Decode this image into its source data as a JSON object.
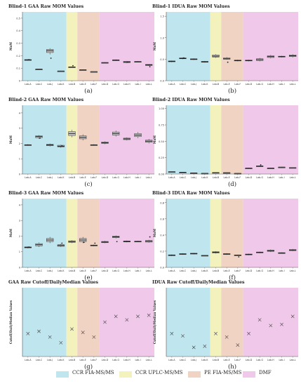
{
  "colors": {
    "ccr_fia": "#bfe6ee",
    "ccr_uplc": "#f3f2bc",
    "pe_fia": "#f1d3c3",
    "dmf": "#f0c9ea",
    "box_fill": "#c8c8c8",
    "box_edge": "#333333",
    "point": "#222222"
  },
  "legend": {
    "ccr_fia": "CCR FIA-MS/MS",
    "ccr_uplc": "CCR UPLC-MS/MS",
    "pe_fia": "PE FIA-MS/MS",
    "dmf": "DMF"
  },
  "chart_data": [
    {
      "title": "Blind-1 GAA Raw MOM Values",
      "panel_label": "(a)",
      "type": "box",
      "ylabel": "MoM",
      "ylim": [
        0,
        0.55
      ],
      "yticks": [
        "0",
        "0.1",
        "0.2",
        "0.3",
        "0.4",
        "0.5"
      ],
      "categories": [
        "Lab-A",
        "Lab-C",
        "Lab-J",
        "Lab-K",
        "Lab-B",
        "Lab-E",
        "Lab-F",
        "Lab-D",
        "Lab-G",
        "Lab-H",
        "Lab-I",
        "Lab-L"
      ],
      "groups": [
        "ccr_fia",
        "ccr_fia",
        "ccr_fia",
        "ccr_fia",
        "ccr_uplc",
        "pe_fia",
        "pe_fia",
        "dmf",
        "dmf",
        "dmf",
        "dmf",
        "dmf"
      ],
      "boxes": [
        [
          0.16,
          0.163,
          0.166,
          0.169,
          0.172
        ],
        [
          0.09,
          0.091,
          0.092,
          0.093,
          0.094
        ],
        [
          0.21,
          0.225,
          0.24,
          0.25,
          0.26
        ],
        [
          0.075,
          0.076,
          0.077,
          0.078,
          0.079
        ],
        [
          0.105,
          0.107,
          0.109,
          0.111,
          0.113
        ],
        [
          0.082,
          0.084,
          0.086,
          0.088,
          0.09
        ],
        [
          0.07,
          0.071,
          0.072,
          0.073,
          0.074
        ],
        [
          0.14,
          0.142,
          0.144,
          0.146,
          0.148
        ],
        [
          0.158,
          0.161,
          0.164,
          0.167,
          0.17
        ],
        [
          0.14,
          0.145,
          0.15,
          0.155,
          0.158
        ],
        [
          0.148,
          0.15,
          0.152,
          0.154,
          0.156
        ],
        [
          0.118,
          0.122,
          0.126,
          0.13,
          0.133
        ]
      ],
      "points": [
        [
          0.168
        ],
        [],
        [
          0.18
        ],
        [],
        [
          0.12
        ],
        [],
        [],
        [],
        [],
        [
          0.148
        ],
        [],
        [
          0.112
        ]
      ]
    },
    {
      "title": "Blind-1 IDUA Raw MOM Values",
      "panel_label": "(b)",
      "type": "box",
      "ylabel": "MoM",
      "ylim": [
        0,
        1.6
      ],
      "yticks": [
        "0.0",
        "0.5",
        "1.0",
        "1.5"
      ],
      "categories": [
        "Lab-A",
        "Lab-C",
        "Lab-J",
        "Lab-K",
        "Lab-B",
        "Lab-E",
        "Lab-F",
        "Lab-D",
        "Lab-G",
        "Lab-H",
        "Lab-I",
        "Lab-L"
      ],
      "groups": [
        "ccr_fia",
        "ccr_fia",
        "ccr_fia",
        "ccr_fia",
        "ccr_uplc",
        "pe_fia",
        "pe_fia",
        "dmf",
        "dmf",
        "dmf",
        "dmf",
        "dmf"
      ],
      "boxes": [
        [
          0.43,
          0.44,
          0.45,
          0.46,
          0.47
        ],
        [
          0.5,
          0.51,
          0.52,
          0.53,
          0.54
        ],
        [
          0.48,
          0.49,
          0.5,
          0.51,
          0.52
        ],
        [
          0.42,
          0.43,
          0.44,
          0.45,
          0.46
        ],
        [
          0.53,
          0.55,
          0.57,
          0.6,
          0.62
        ],
        [
          0.49,
          0.5,
          0.51,
          0.53,
          0.55
        ],
        [
          0.45,
          0.46,
          0.47,
          0.48,
          0.49
        ],
        [
          0.45,
          0.46,
          0.47,
          0.48,
          0.49
        ],
        [
          0.45,
          0.47,
          0.49,
          0.51,
          0.53
        ],
        [
          0.52,
          0.54,
          0.56,
          0.58,
          0.6
        ],
        [
          0.54,
          0.55,
          0.56,
          0.57,
          0.58
        ],
        [
          0.54,
          0.56,
          0.58,
          0.6,
          0.62
        ]
      ],
      "points": [
        [],
        [
          0.53
        ],
        [],
        [],
        [],
        [
          0.43
        ],
        [],
        [],
        [],
        [],
        [],
        []
      ]
    },
    {
      "title": "Blind-2 GAA Raw MOM Values",
      "panel_label": "(c)",
      "type": "box",
      "ylabel": "MoM",
      "ylim": [
        0,
        4.5
      ],
      "yticks": [
        "0",
        "1",
        "2",
        "3",
        "4"
      ],
      "categories": [
        "Lab-A",
        "Lab-C",
        "Lab-J",
        "Lab-K",
        "Lab-B",
        "Lab-E",
        "Lab-F",
        "Lab-D",
        "Lab-G",
        "Lab-H",
        "Lab-I",
        "Lab-L"
      ],
      "groups": [
        "ccr_fia",
        "ccr_fia",
        "ccr_fia",
        "ccr_fia",
        "ccr_uplc",
        "pe_fia",
        "pe_fia",
        "dmf",
        "dmf",
        "dmf",
        "dmf",
        "dmf"
      ],
      "boxes": [
        [
          1.85,
          1.88,
          1.9,
          1.92,
          1.95
        ],
        [
          2.3,
          2.38,
          2.45,
          2.5,
          2.55
        ],
        [
          1.8,
          1.85,
          1.9,
          1.95,
          2.0
        ],
        [
          1.72,
          1.78,
          1.82,
          1.88,
          1.92
        ],
        [
          2.4,
          2.52,
          2.65,
          2.78,
          2.9
        ],
        [
          2.2,
          2.3,
          2.4,
          2.5,
          2.6
        ],
        [
          1.85,
          1.88,
          1.9,
          1.92,
          1.95
        ],
        [
          1.95,
          2.0,
          2.05,
          2.1,
          2.15
        ],
        [
          2.45,
          2.55,
          2.65,
          2.75,
          2.85
        ],
        [
          2.2,
          2.25,
          2.3,
          2.35,
          2.4
        ],
        [
          2.35,
          2.45,
          2.55,
          2.65,
          2.75
        ],
        [
          2.0,
          2.08,
          2.15,
          2.22,
          2.3
        ]
      ],
      "points": [
        [],
        [
          2.35
        ],
        [],
        [
          1.85
        ],
        [],
        [],
        [],
        [],
        [],
        [],
        [],
        []
      ]
    },
    {
      "title": "Blind-2 IDUA Raw MOM Values",
      "panel_label": "(d)",
      "type": "box",
      "ylabel": "MoM",
      "ylim": [
        0,
        1.05
      ],
      "yticks": [
        "0.00",
        "0.25",
        "0.50",
        "0.75",
        "1.00"
      ],
      "categories": [
        "Lab-A",
        "Lab-C",
        "Lab-J",
        "Lab-K",
        "Lab-B",
        "Lab-E",
        "Lab-F",
        "Lab-D",
        "Lab-G",
        "Lab-H",
        "Lab-I",
        "Lab-L"
      ],
      "groups": [
        "ccr_fia",
        "ccr_fia",
        "ccr_fia",
        "ccr_fia",
        "ccr_uplc",
        "pe_fia",
        "pe_fia",
        "dmf",
        "dmf",
        "dmf",
        "dmf",
        "dmf"
      ],
      "boxes": [
        [
          0.03,
          0.032,
          0.034,
          0.036,
          0.038
        ],
        [
          0.022,
          0.024,
          0.026,
          0.028,
          0.03
        ],
        [
          0.012,
          0.014,
          0.016,
          0.018,
          0.02
        ],
        [
          0.006,
          0.008,
          0.01,
          0.012,
          0.014
        ],
        [
          0.015,
          0.018,
          0.021,
          0.024,
          0.027
        ],
        [
          0.013,
          0.016,
          0.019,
          0.022,
          0.025
        ],
        [
          0.005,
          0.007,
          0.009,
          0.011,
          0.013
        ],
        [
          0.083,
          0.086,
          0.089,
          0.092,
          0.095
        ],
        [
          0.11,
          0.115,
          0.12,
          0.125,
          0.13
        ],
        [
          0.083,
          0.086,
          0.089,
          0.092,
          0.095
        ],
        [
          0.098,
          0.101,
          0.104,
          0.107,
          0.11
        ],
        [
          0.09,
          0.093,
          0.096,
          0.099,
          0.102
        ]
      ],
      "points": [
        [],
        [],
        [],
        [],
        [],
        [],
        [],
        [],
        [
          0.14
        ],
        [],
        [],
        []
      ]
    },
    {
      "title": "Blind-3 GAA Raw MOM Values",
      "panel_label": "(e)",
      "type": "box",
      "ylabel": "MoM",
      "ylim": [
        0,
        4.4
      ],
      "yticks": [
        "0",
        "1",
        "2",
        "3",
        "4"
      ],
      "categories": [
        "Lab-A",
        "Lab-C",
        "Lab-J",
        "Lab-K",
        "Lab-B",
        "Lab-E",
        "Lab-F",
        "Lab-D",
        "Lab-G",
        "Lab-H",
        "Lab-I",
        "Lab-L"
      ],
      "groups": [
        "ccr_fia",
        "ccr_fia",
        "ccr_fia",
        "ccr_fia",
        "ccr_uplc",
        "pe_fia",
        "pe_fia",
        "dmf",
        "dmf",
        "dmf",
        "dmf",
        "dmf"
      ],
      "boxes": [
        [
          1.22,
          1.25,
          1.28,
          1.31,
          1.34
        ],
        [
          1.3,
          1.38,
          1.45,
          1.52,
          1.6
        ],
        [
          1.55,
          1.65,
          1.75,
          1.85,
          1.95
        ],
        [
          1.3,
          1.35,
          1.4,
          1.45,
          1.5
        ],
        [
          1.55,
          1.6,
          1.65,
          1.7,
          1.75
        ],
        [
          1.55,
          1.65,
          1.75,
          1.85,
          1.95
        ],
        [
          1.35,
          1.38,
          1.4,
          1.43,
          1.46
        ],
        [
          1.55,
          1.58,
          1.62,
          1.66,
          1.7
        ],
        [
          1.85,
          1.9,
          1.95,
          2.0,
          2.05
        ],
        [
          1.6,
          1.63,
          1.66,
          1.69,
          1.72
        ],
        [
          1.62,
          1.64,
          1.66,
          1.68,
          1.7
        ],
        [
          1.58,
          1.62,
          1.67,
          1.72,
          1.76
        ]
      ],
      "points": [
        [
          1.3
        ],
        [],
        [],
        [
          1.55
        ],
        [],
        [
          1.6
        ],
        [
          1.55
        ],
        [],
        [
          1.65
        ],
        [],
        [],
        [
          1.95
        ]
      ]
    },
    {
      "title": "Blind-3 IDUA Raw MOM Values",
      "panel_label": "(f)",
      "type": "box",
      "ylabel": "MoM",
      "ylim": [
        0,
        0.85
      ],
      "yticks": [
        "0.0",
        "0.2",
        "0.4",
        "0.6",
        "0.8"
      ],
      "categories": [
        "Lab-A",
        "Lab-C",
        "Lab-J",
        "Lab-K",
        "Lab-B",
        "Lab-E",
        "Lab-F",
        "Lab-D",
        "Lab-G",
        "Lab-H",
        "Lab-I",
        "Lab-L"
      ],
      "groups": [
        "ccr_fia",
        "ccr_fia",
        "ccr_fia",
        "ccr_fia",
        "ccr_uplc",
        "pe_fia",
        "pe_fia",
        "dmf",
        "dmf",
        "dmf",
        "dmf",
        "dmf"
      ],
      "boxes": [
        [
          0.14,
          0.145,
          0.15,
          0.155,
          0.16
        ],
        [
          0.155,
          0.16,
          0.165,
          0.17,
          0.175
        ],
        [
          0.16,
          0.165,
          0.17,
          0.175,
          0.18
        ],
        [
          0.14,
          0.143,
          0.146,
          0.149,
          0.152
        ],
        [
          0.17,
          0.178,
          0.186,
          0.194,
          0.2
        ],
        [
          0.155,
          0.16,
          0.165,
          0.17,
          0.175
        ],
        [
          0.145,
          0.148,
          0.151,
          0.154,
          0.157
        ],
        [
          0.15,
          0.155,
          0.16,
          0.165,
          0.17
        ],
        [
          0.175,
          0.18,
          0.185,
          0.19,
          0.195
        ],
        [
          0.19,
          0.198,
          0.206,
          0.214,
          0.222
        ],
        [
          0.17,
          0.174,
          0.178,
          0.182,
          0.186
        ],
        [
          0.2,
          0.207,
          0.214,
          0.221,
          0.228
        ]
      ],
      "points": [
        [],
        [],
        [],
        [],
        [],
        [],
        [
          0.13
        ],
        [],
        [],
        [],
        [],
        []
      ]
    },
    {
      "title": "GAA Raw Cutoff/DailyMedian Values",
      "panel_label": "(g)",
      "type": "scatter",
      "ylabel": "Cutoff/DailyMedian Values",
      "ylim": [
        0,
        0.6
      ],
      "yticks": [],
      "categories": [
        "Lab-A",
        "Lab-C",
        "Lab-J",
        "Lab-K",
        "Lab-B",
        "Lab-E",
        "Lab-F",
        "Lab-D",
        "Lab-G",
        "Lab-H",
        "Lab-I",
        "Lab-L"
      ],
      "groups": [
        "ccr_fia",
        "ccr_fia",
        "ccr_fia",
        "ccr_fia",
        "ccr_uplc",
        "pe_fia",
        "pe_fia",
        "dmf",
        "dmf",
        "dmf",
        "dmf",
        "dmf"
      ],
      "values": [
        0.2,
        0.22,
        0.17,
        0.12,
        0.24,
        0.21,
        0.17,
        0.3,
        0.35,
        0.32,
        0.35,
        0.36
      ]
    },
    {
      "title": "IDUA Raw Cutoff/DailyMedian Values",
      "panel_label": "(h)",
      "type": "scatter",
      "ylabel": "Cutoff/DailyMedian Values",
      "ylim": [
        0,
        0.6
      ],
      "yticks": [],
      "categories": [
        "Lab-A",
        "Lab-C",
        "Lab-J",
        "Lab-K",
        "Lab-B",
        "Lab-E",
        "Lab-F",
        "Lab-D",
        "Lab-G",
        "Lab-H",
        "Lab-I",
        "Lab-L"
      ],
      "groups": [
        "ccr_fia",
        "ccr_fia",
        "ccr_fia",
        "ccr_fia",
        "ccr_uplc",
        "pe_fia",
        "pe_fia",
        "dmf",
        "dmf",
        "dmf",
        "dmf",
        "dmf"
      ],
      "values": [
        0.2,
        0.18,
        0.08,
        0.09,
        0.2,
        0.17,
        0.1,
        0.2,
        0.32,
        0.27,
        0.28,
        0.35
      ]
    }
  ]
}
